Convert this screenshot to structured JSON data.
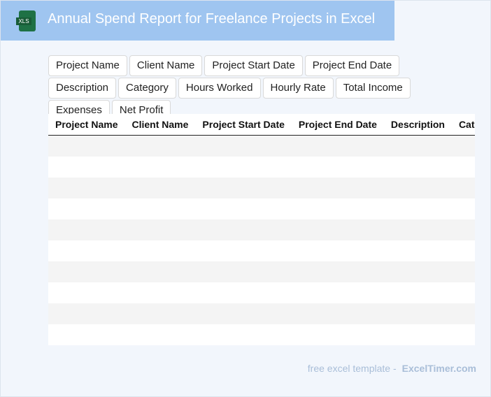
{
  "header": {
    "icon": "XLS",
    "title": "Annual Spend Report for Freelance Projects in Excel"
  },
  "fields": [
    "Project Name",
    "Client Name",
    "Project Start Date",
    "Project End Date",
    "Description",
    "Category",
    "Hours Worked",
    "Hourly Rate",
    "Total Income",
    "Expenses",
    "Net Profit"
  ],
  "table": {
    "columns": [
      "Project Name",
      "Client Name",
      "Project Start Date",
      "Project End Date",
      "Description",
      "Category"
    ]
  },
  "footer": {
    "text": "free excel template -",
    "brand": "ExcelTimer.com"
  }
}
